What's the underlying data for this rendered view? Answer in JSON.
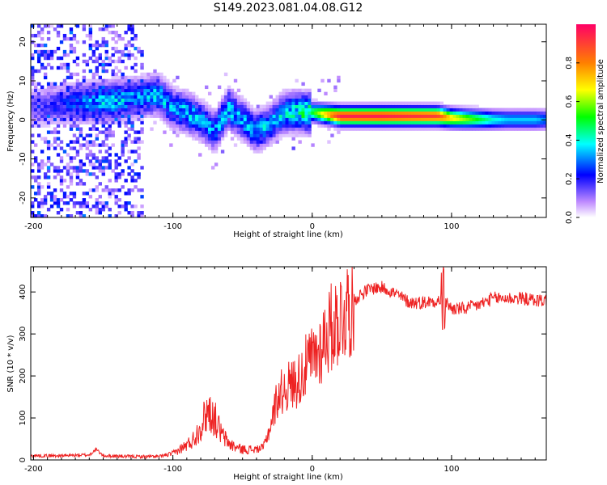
{
  "title": "S149.2023.081.04.08.G12",
  "chart_data": [
    {
      "type": "heatmap",
      "xlabel": "Height of straight line (km)",
      "ylabel": "Frequency (Hz)",
      "xlim": [
        -202,
        168
      ],
      "ylim": [
        -25,
        24.5
      ],
      "x_ticks": [
        -200,
        -100,
        0,
        100
      ],
      "y_ticks": [
        -20,
        -10,
        0,
        10,
        20
      ],
      "x_tick_labels": [
        "-200",
        "-100",
        "0",
        "100"
      ],
      "y_tick_labels": [
        "-20",
        "-10",
        "0",
        "10",
        "20"
      ],
      "colorbar": {
        "label": "Normalized spectral amplitude",
        "range": [
          0,
          1
        ],
        "ticks": [
          0.0,
          0.2,
          0.4,
          0.6,
          0.8
        ],
        "tick_labels": [
          "0.0",
          "0.2",
          "0.4",
          "0.6",
          "0.8"
        ]
      },
      "ridge": {
        "x": [
          -200,
          -180,
          -160,
          -140,
          -130,
          -120,
          -110,
          -100,
          -90,
          -80,
          -70,
          -60,
          -50,
          -40,
          -30,
          -20,
          -10,
          0,
          20,
          50,
          90,
          100,
          110,
          120,
          130,
          140,
          150,
          160,
          168
        ],
        "y": [
          3,
          4,
          4.5,
          5,
          5.5,
          6,
          6.5,
          3,
          2,
          0,
          -3,
          3,
          0,
          -3,
          -1,
          2,
          2,
          2,
          1,
          1,
          1,
          0.5,
          0.3,
          0.2,
          0.1,
          0.1,
          0.1,
          0.1,
          0.1
        ],
        "amplitude": [
          0.15,
          0.2,
          0.3,
          0.35,
          0.3,
          0.3,
          0.35,
          0.3,
          0.35,
          0.3,
          0.3,
          0.35,
          0.3,
          0.35,
          0.3,
          0.35,
          0.4,
          0.5,
          0.95,
          0.95,
          0.9,
          0.7,
          0.6,
          0.5,
          0.4,
          0.35,
          0.35,
          0.35,
          0.3
        ]
      },
      "noise_region_x": [
        -202,
        -120
      ]
    },
    {
      "type": "line",
      "xlabel": "Height of straight line (km)",
      "ylabel": "SNR (10 * v/v)",
      "xlim": [
        -202,
        168
      ],
      "ylim": [
        0,
        460
      ],
      "x_ticks": [
        -200,
        -100,
        0,
        100
      ],
      "y_ticks": [
        0,
        100,
        200,
        300,
        400
      ],
      "x_tick_labels": [
        "-200",
        "-100",
        "0",
        "100"
      ],
      "y_tick_labels": [
        "0",
        "100",
        "200",
        "300",
        "400"
      ],
      "series": [
        {
          "color": "#ee2222",
          "x": [
            -202,
            -180,
            -160,
            -155,
            -150,
            -130,
            -110,
            -100,
            -95,
            -90,
            -85,
            -80,
            -75,
            -70,
            -65,
            -60,
            -55,
            -50,
            -45,
            -40,
            -35,
            -30,
            -25,
            -20,
            -15,
            -10,
            -5,
            0,
            5,
            10,
            15,
            20,
            25,
            30,
            35,
            40,
            45,
            50,
            55,
            60,
            65,
            70,
            80,
            90,
            95,
            100,
            110,
            120,
            130,
            140,
            150,
            160,
            168
          ],
          "y": [
            10,
            10,
            12,
            25,
            10,
            8,
            8,
            15,
            25,
            35,
            50,
            80,
            120,
            100,
            60,
            40,
            30,
            25,
            25,
            25,
            30,
            80,
            150,
            170,
            180,
            190,
            220,
            240,
            260,
            300,
            320,
            340,
            360,
            380,
            395,
            405,
            410,
            410,
            405,
            395,
            385,
            375,
            375,
            380,
            380,
            360,
            360,
            370,
            385,
            385,
            385,
            380,
            380
          ]
        }
      ]
    }
  ]
}
